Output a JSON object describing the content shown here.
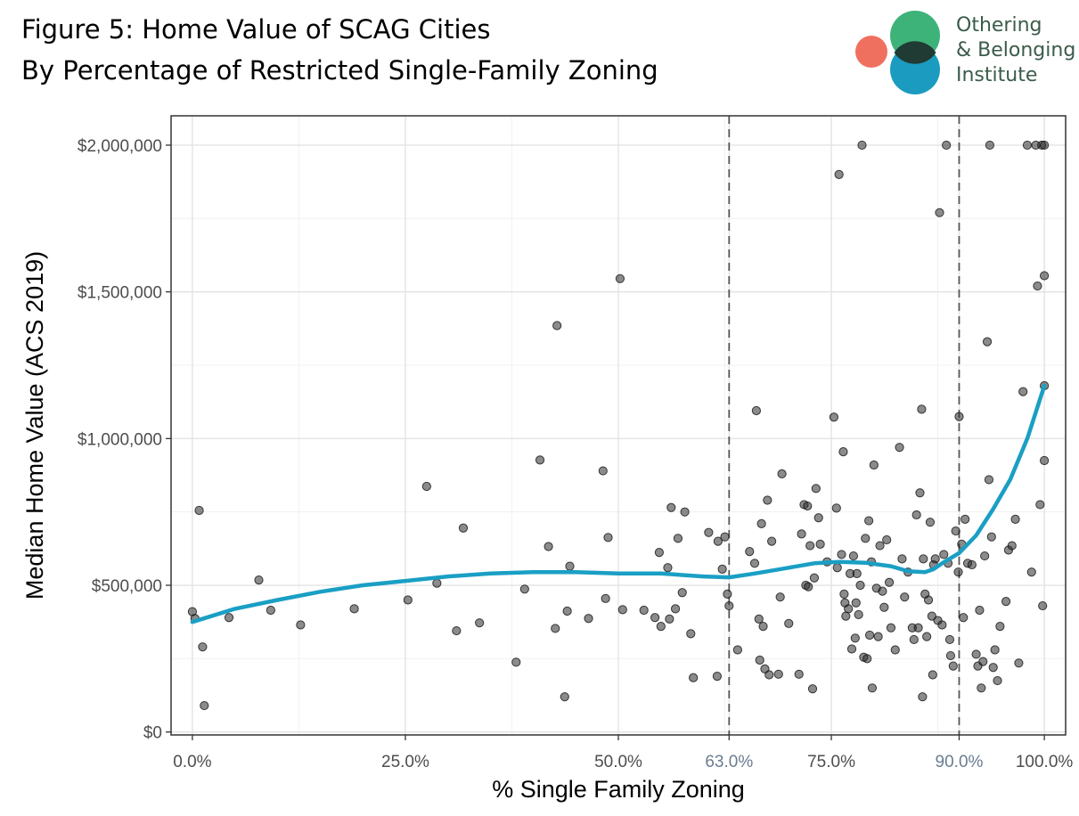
{
  "header": {
    "title_line1": "Figure 5: Home Value of SCAG Cities",
    "title_line2": "By Percentage of Restricted Single-Family Zoning"
  },
  "logo": {
    "line1": "Othering",
    "line2": "& Belonging",
    "line3": "Institute",
    "colors": {
      "green": "#3db37a",
      "teal": "#1b9bbf",
      "coral": "#f07060",
      "overlap": "#1f3b33",
      "text": "#3b5c4a"
    }
  },
  "colors": {
    "points": "#2b2b2b",
    "smooth_line": "#1a9fc4",
    "vline": "#555555",
    "grid_major": "#e3e3e3",
    "grid_minor": "#f1f1f1",
    "highlight_tick": "#6a7d90"
  },
  "chart_data": {
    "type": "scatter",
    "title": "Figure 5: Home Value of SCAG Cities",
    "subtitle": "By Percentage of Restricted Single-Family Zoning",
    "xlabel": "% Single Family Zoning",
    "ylabel": "Median Home Value (ACS 2019)",
    "xlim": [
      -0.025,
      1.025
    ],
    "ylim": [
      -10000,
      2100000
    ],
    "grid": true,
    "x_ticks": [
      {
        "value": 0.0,
        "label": "0.0%"
      },
      {
        "value": 0.25,
        "label": "25.0%"
      },
      {
        "value": 0.5,
        "label": "50.0%"
      },
      {
        "value": 0.63,
        "label": "63.0%",
        "highlight": true
      },
      {
        "value": 0.75,
        "label": "75.0%"
      },
      {
        "value": 0.9,
        "label": "90.0%",
        "highlight": true
      },
      {
        "value": 1.0,
        "label": "100.0%"
      }
    ],
    "y_ticks": [
      {
        "value": 0,
        "label": "$0"
      },
      {
        "value": 500000,
        "label": "$500,000"
      },
      {
        "value": 1000000,
        "label": "$1,000,000"
      },
      {
        "value": 1500000,
        "label": "$1,500,000"
      },
      {
        "value": 2000000,
        "label": "$2,000,000"
      }
    ],
    "reference_lines_x": [
      0.63,
      0.9
    ],
    "smooth": {
      "x": [
        0.0,
        0.05,
        0.1,
        0.15,
        0.2,
        0.25,
        0.3,
        0.35,
        0.4,
        0.45,
        0.5,
        0.55,
        0.6,
        0.63,
        0.66,
        0.7,
        0.73,
        0.76,
        0.79,
        0.82,
        0.84,
        0.86,
        0.87,
        0.88,
        0.9,
        0.92,
        0.94,
        0.96,
        0.98,
        1.0
      ],
      "y": [
        375000,
        420000,
        450000,
        478000,
        500000,
        515000,
        530000,
        540000,
        545000,
        545000,
        540000,
        540000,
        530000,
        527000,
        540000,
        560000,
        575000,
        580000,
        577000,
        565000,
        548000,
        545000,
        555000,
        575000,
        610000,
        670000,
        760000,
        860000,
        1000000,
        1180000
      ]
    },
    "points": [
      {
        "x": 0.0,
        "y": 410000
      },
      {
        "x": 0.003,
        "y": 387000
      },
      {
        "x": 0.008,
        "y": 755000
      },
      {
        "x": 0.012,
        "y": 290000
      },
      {
        "x": 0.014,
        "y": 90000
      },
      {
        "x": 0.043,
        "y": 390000
      },
      {
        "x": 0.078,
        "y": 518000
      },
      {
        "x": 0.092,
        "y": 415000
      },
      {
        "x": 0.127,
        "y": 365000
      },
      {
        "x": 0.19,
        "y": 420000
      },
      {
        "x": 0.253,
        "y": 450000
      },
      {
        "x": 0.275,
        "y": 837000
      },
      {
        "x": 0.287,
        "y": 507000
      },
      {
        "x": 0.31,
        "y": 345000
      },
      {
        "x": 0.318,
        "y": 695000
      },
      {
        "x": 0.337,
        "y": 372000
      },
      {
        "x": 0.38,
        "y": 238000
      },
      {
        "x": 0.39,
        "y": 487000
      },
      {
        "x": 0.408,
        "y": 927000
      },
      {
        "x": 0.418,
        "y": 632000
      },
      {
        "x": 0.426,
        "y": 353000
      },
      {
        "x": 0.428,
        "y": 1385000
      },
      {
        "x": 0.437,
        "y": 120000
      },
      {
        "x": 0.44,
        "y": 412000
      },
      {
        "x": 0.443,
        "y": 565000
      },
      {
        "x": 0.465,
        "y": 387000
      },
      {
        "x": 0.482,
        "y": 890000
      },
      {
        "x": 0.485,
        "y": 455000
      },
      {
        "x": 0.488,
        "y": 663000
      },
      {
        "x": 0.502,
        "y": 1545000
      },
      {
        "x": 0.505,
        "y": 417000
      },
      {
        "x": 0.53,
        "y": 415000
      },
      {
        "x": 0.543,
        "y": 390000
      },
      {
        "x": 0.548,
        "y": 612000
      },
      {
        "x": 0.55,
        "y": 360000
      },
      {
        "x": 0.558,
        "y": 560000
      },
      {
        "x": 0.56,
        "y": 385000
      },
      {
        "x": 0.562,
        "y": 765000
      },
      {
        "x": 0.567,
        "y": 420000
      },
      {
        "x": 0.57,
        "y": 660000
      },
      {
        "x": 0.575,
        "y": 475000
      },
      {
        "x": 0.578,
        "y": 750000
      },
      {
        "x": 0.585,
        "y": 335000
      },
      {
        "x": 0.588,
        "y": 185000
      },
      {
        "x": 0.606,
        "y": 680000
      },
      {
        "x": 0.616,
        "y": 190000
      },
      {
        "x": 0.617,
        "y": 650000
      },
      {
        "x": 0.622,
        "y": 555000
      },
      {
        "x": 0.625,
        "y": 665000
      },
      {
        "x": 0.628,
        "y": 470000
      },
      {
        "x": 0.63,
        "y": 430000
      },
      {
        "x": 0.64,
        "y": 280000
      },
      {
        "x": 0.654,
        "y": 615000
      },
      {
        "x": 0.66,
        "y": 575000
      },
      {
        "x": 0.662,
        "y": 1095000
      },
      {
        "x": 0.665,
        "y": 385000
      },
      {
        "x": 0.666,
        "y": 245000
      },
      {
        "x": 0.668,
        "y": 710000
      },
      {
        "x": 0.67,
        "y": 360000
      },
      {
        "x": 0.672,
        "y": 215000
      },
      {
        "x": 0.675,
        "y": 790000
      },
      {
        "x": 0.677,
        "y": 195000
      },
      {
        "x": 0.68,
        "y": 650000
      },
      {
        "x": 0.688,
        "y": 197000
      },
      {
        "x": 0.69,
        "y": 460000
      },
      {
        "x": 0.692,
        "y": 880000
      },
      {
        "x": 0.7,
        "y": 370000
      },
      {
        "x": 0.712,
        "y": 197000
      },
      {
        "x": 0.715,
        "y": 675000
      },
      {
        "x": 0.718,
        "y": 775000
      },
      {
        "x": 0.72,
        "y": 500000
      },
      {
        "x": 0.722,
        "y": 770000
      },
      {
        "x": 0.723,
        "y": 495000
      },
      {
        "x": 0.725,
        "y": 635000
      },
      {
        "x": 0.728,
        "y": 147000
      },
      {
        "x": 0.73,
        "y": 525000
      },
      {
        "x": 0.732,
        "y": 830000
      },
      {
        "x": 0.735,
        "y": 730000
      },
      {
        "x": 0.737,
        "y": 640000
      },
      {
        "x": 0.745,
        "y": 580000
      },
      {
        "x": 0.753,
        "y": 1073000
      },
      {
        "x": 0.756,
        "y": 763000
      },
      {
        "x": 0.757,
        "y": 560000
      },
      {
        "x": 0.759,
        "y": 1900000
      },
      {
        "x": 0.762,
        "y": 605000
      },
      {
        "x": 0.764,
        "y": 955000
      },
      {
        "x": 0.765,
        "y": 470000
      },
      {
        "x": 0.766,
        "y": 440000
      },
      {
        "x": 0.767,
        "y": 395000
      },
      {
        "x": 0.77,
        "y": 420000
      },
      {
        "x": 0.772,
        "y": 540000
      },
      {
        "x": 0.774,
        "y": 283000
      },
      {
        "x": 0.776,
        "y": 600000
      },
      {
        "x": 0.778,
        "y": 320000
      },
      {
        "x": 0.779,
        "y": 440000
      },
      {
        "x": 0.78,
        "y": 540000
      },
      {
        "x": 0.782,
        "y": 400000
      },
      {
        "x": 0.784,
        "y": 500000
      },
      {
        "x": 0.786,
        "y": 2000000
      },
      {
        "x": 0.788,
        "y": 255000
      },
      {
        "x": 0.79,
        "y": 660000
      },
      {
        "x": 0.792,
        "y": 250000
      },
      {
        "x": 0.794,
        "y": 720000
      },
      {
        "x": 0.795,
        "y": 330000
      },
      {
        "x": 0.797,
        "y": 580000
      },
      {
        "x": 0.798,
        "y": 150000
      },
      {
        "x": 0.8,
        "y": 910000
      },
      {
        "x": 0.803,
        "y": 490000
      },
      {
        "x": 0.805,
        "y": 325000
      },
      {
        "x": 0.807,
        "y": 635000
      },
      {
        "x": 0.81,
        "y": 480000
      },
      {
        "x": 0.812,
        "y": 425000
      },
      {
        "x": 0.815,
        "y": 655000
      },
      {
        "x": 0.818,
        "y": 510000
      },
      {
        "x": 0.82,
        "y": 355000
      },
      {
        "x": 0.825,
        "y": 280000
      },
      {
        "x": 0.83,
        "y": 970000
      },
      {
        "x": 0.833,
        "y": 590000
      },
      {
        "x": 0.836,
        "y": 460000
      },
      {
        "x": 0.84,
        "y": 545000
      },
      {
        "x": 0.845,
        "y": 355000
      },
      {
        "x": 0.847,
        "y": 315000
      },
      {
        "x": 0.85,
        "y": 740000
      },
      {
        "x": 0.852,
        "y": 355000
      },
      {
        "x": 0.854,
        "y": 815000
      },
      {
        "x": 0.856,
        "y": 1100000
      },
      {
        "x": 0.857,
        "y": 120000
      },
      {
        "x": 0.858,
        "y": 590000
      },
      {
        "x": 0.86,
        "y": 470000
      },
      {
        "x": 0.862,
        "y": 325000
      },
      {
        "x": 0.864,
        "y": 450000
      },
      {
        "x": 0.866,
        "y": 715000
      },
      {
        "x": 0.868,
        "y": 395000
      },
      {
        "x": 0.869,
        "y": 195000
      },
      {
        "x": 0.87,
        "y": 570000
      },
      {
        "x": 0.872,
        "y": 590000
      },
      {
        "x": 0.875,
        "y": 380000
      },
      {
        "x": 0.877,
        "y": 1770000
      },
      {
        "x": 0.88,
        "y": 365000
      },
      {
        "x": 0.882,
        "y": 605000
      },
      {
        "x": 0.885,
        "y": 2000000
      },
      {
        "x": 0.887,
        "y": 575000
      },
      {
        "x": 0.889,
        "y": 315000
      },
      {
        "x": 0.89,
        "y": 260000
      },
      {
        "x": 0.893,
        "y": 225000
      },
      {
        "x": 0.896,
        "y": 685000
      },
      {
        "x": 0.899,
        "y": 545000
      },
      {
        "x": 0.9,
        "y": 1075000
      },
      {
        "x": 0.903,
        "y": 640000
      },
      {
        "x": 0.905,
        "y": 390000
      },
      {
        "x": 0.907,
        "y": 725000
      },
      {
        "x": 0.91,
        "y": 575000
      },
      {
        "x": 0.915,
        "y": 570000
      },
      {
        "x": 0.92,
        "y": 265000
      },
      {
        "x": 0.922,
        "y": 225000
      },
      {
        "x": 0.924,
        "y": 415000
      },
      {
        "x": 0.926,
        "y": 150000
      },
      {
        "x": 0.928,
        "y": 240000
      },
      {
        "x": 0.93,
        "y": 600000
      },
      {
        "x": 0.933,
        "y": 1330000
      },
      {
        "x": 0.935,
        "y": 860000
      },
      {
        "x": 0.936,
        "y": 2000000
      },
      {
        "x": 0.938,
        "y": 665000
      },
      {
        "x": 0.94,
        "y": 220000
      },
      {
        "x": 0.942,
        "y": 280000
      },
      {
        "x": 0.945,
        "y": 175000
      },
      {
        "x": 0.948,
        "y": 360000
      },
      {
        "x": 0.955,
        "y": 445000
      },
      {
        "x": 0.958,
        "y": 620000
      },
      {
        "x": 0.962,
        "y": 635000
      },
      {
        "x": 0.966,
        "y": 725000
      },
      {
        "x": 0.97,
        "y": 235000
      },
      {
        "x": 0.975,
        "y": 1160000
      },
      {
        "x": 0.98,
        "y": 2000000
      },
      {
        "x": 0.985,
        "y": 545000
      },
      {
        "x": 0.99,
        "y": 2000000
      },
      {
        "x": 0.992,
        "y": 1520000
      },
      {
        "x": 0.995,
        "y": 775000
      },
      {
        "x": 0.997,
        "y": 2000000
      },
      {
        "x": 0.998,
        "y": 430000
      },
      {
        "x": 1.0,
        "y": 2000000
      },
      {
        "x": 1.0,
        "y": 1180000
      },
      {
        "x": 1.0,
        "y": 1555000
      },
      {
        "x": 1.0,
        "y": 925000
      }
    ]
  }
}
